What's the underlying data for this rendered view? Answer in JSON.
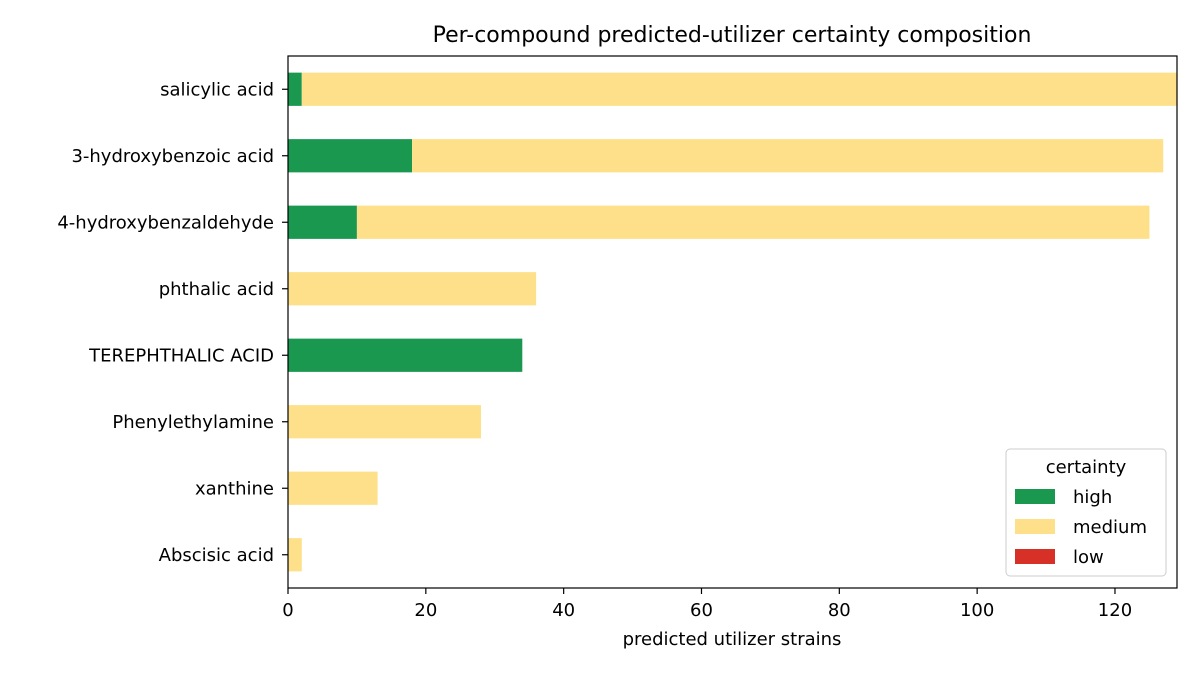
{
  "chart_data": {
    "type": "bar",
    "orientation": "horizontal",
    "stacked": true,
    "title": "Per-compound predicted-utilizer certainty composition",
    "xlabel": "predicted utilizer strains",
    "ylabel": "",
    "xlim": [
      0,
      129
    ],
    "xticks": [
      0,
      20,
      40,
      60,
      80,
      100,
      120
    ],
    "grid": false,
    "legend": {
      "title": "certainty",
      "position": "lower-right"
    },
    "categories": [
      "salicylic acid",
      "3-hydroxybenzoic acid",
      "4-hydroxybenzaldehyde",
      "phthalic acid",
      "TEREPHTHALIC ACID",
      "Phenylethylamine",
      "xanthine",
      "Abscisic acid"
    ],
    "series": [
      {
        "name": "high",
        "color": "#1a9850",
        "values": [
          2,
          18,
          10,
          0,
          34,
          0,
          0,
          0
        ]
      },
      {
        "name": "medium",
        "color": "#fee08b",
        "values": [
          127,
          109,
          115,
          36,
          0,
          28,
          13,
          2
        ]
      },
      {
        "name": "low",
        "color": "#d73027",
        "values": [
          0,
          0,
          0,
          0,
          0,
          0,
          0,
          0
        ]
      }
    ]
  }
}
